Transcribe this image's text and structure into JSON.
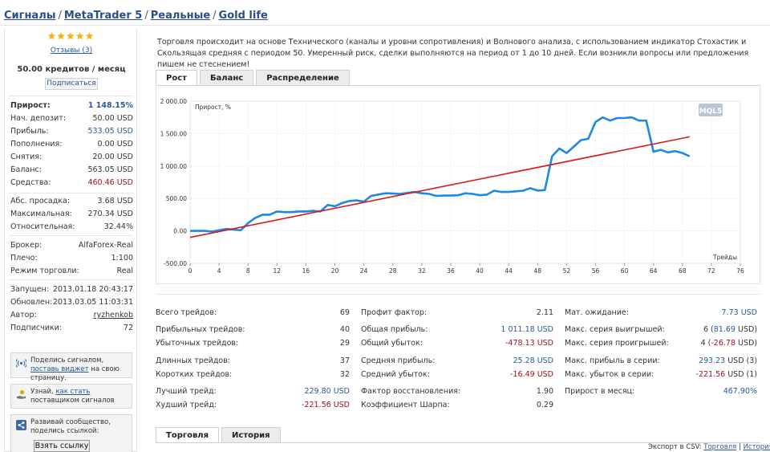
{
  "breadcrumbs": [
    "Сигналы",
    "MetaTrader 5",
    "Реальные",
    "Gold life"
  ],
  "sidebar": {
    "reviews": "Отзывы (3)",
    "price": "50.00 кредитов / месяц",
    "subscribe": "Подписаться",
    "rows1": [
      {
        "k": "Прирост:",
        "v": "1 148.15%",
        "cls": "bold",
        "vc": "blue"
      },
      {
        "k": "Нач. депозит:",
        "v": "50.00 USD"
      },
      {
        "k": "Прибыль:",
        "v": "533.05 USD",
        "vc": "blue"
      },
      {
        "k": "Пополнения:",
        "v": "0.00 USD"
      },
      {
        "k": "Снятия:",
        "v": "20.00 USD"
      },
      {
        "k": "Баланс:",
        "v": "563.05 USD"
      },
      {
        "k": "Средства:",
        "v": "460.46 USD",
        "vc": "red"
      }
    ],
    "rows2": [
      {
        "k": "Абс. просадка:",
        "v": "3.68 USD"
      },
      {
        "k": "Максимальная:",
        "v": "270.34 USD"
      },
      {
        "k": "Относительная:",
        "v": "32.44%"
      }
    ],
    "rows3": [
      {
        "k": "Брокер:",
        "v": "AlfaForex-Real"
      },
      {
        "k": "Плечо:",
        "v": "1:100"
      },
      {
        "k": "Режим торговли:",
        "v": "Real"
      }
    ],
    "rows4": [
      {
        "k": "Запущен:",
        "v": "2013.01.18 20:43:17"
      },
      {
        "k": "Обновлен:",
        "v": "2013.03.05 11:03:31"
      },
      {
        "k": "Автор:",
        "v": "ryzhenkob",
        "vc": "link"
      },
      {
        "k": "Подписчики:",
        "v": "72"
      }
    ],
    "promo1": {
      "pre": "Поделись сигналом, ",
      "link": "поставь виджет",
      "post": " на свою страницу."
    },
    "promo2": {
      "pre": "Узнай, ",
      "link": "как стать",
      "post": " поставщиком сигналов"
    },
    "promo3": {
      "text": "Развивай сообщество, поделись ссылкой:",
      "button": "Взять ссылку"
    }
  },
  "description": "Торговля происходит на основе Технического (каналы и уровни сопротивления) и Волнового анализа, с использованием индикатор Стохастик и Скользящая средняя с периодом 50. Умеренный риск, сделки выполняются на период от 1 до 10 дней. Если возникли вопросы или предложения пишем не стеснением!",
  "chart_tabs": [
    "Рост",
    "Баланс",
    "Распределение"
  ],
  "chart_data": {
    "type": "line",
    "ylabel": "Прирост, %",
    "xlabel": "Трейды",
    "xlim": [
      0,
      76
    ],
    "ylim": [
      -500,
      2000
    ],
    "xticks": [
      "0",
      "4",
      "8",
      "12",
      "16",
      "20",
      "24",
      "28",
      "32",
      "36",
      "40",
      "44",
      "48",
      "52",
      "56",
      "60",
      "64",
      "68",
      "72",
      "76"
    ],
    "yticks": [
      "2 000.00",
      "1 500.00",
      "1 000.00",
      "500.00",
      "0.00",
      "-500.00"
    ],
    "grid": true,
    "watermark": "MQL5",
    "series": [
      {
        "color": "#1e88e5",
        "x": [
          0,
          1,
          2,
          3,
          4,
          5,
          6,
          7,
          8,
          9,
          10,
          11,
          12,
          13,
          14,
          15,
          16,
          17,
          18,
          19,
          20,
          21,
          22,
          23,
          24,
          25,
          26,
          27,
          28,
          29,
          30,
          31,
          32,
          33,
          34,
          35,
          36,
          37,
          38,
          39,
          40,
          41,
          42,
          43,
          44,
          45,
          46,
          47,
          48,
          49,
          50,
          51,
          52,
          53,
          54,
          55,
          56,
          57,
          58,
          59,
          60,
          61,
          62,
          63,
          64,
          65,
          66,
          67,
          68,
          69
        ],
        "y": [
          0,
          0,
          0,
          -10,
          10,
          30,
          20,
          10,
          120,
          200,
          250,
          250,
          300,
          290,
          290,
          300,
          300,
          310,
          300,
          400,
          380,
          430,
          460,
          470,
          450,
          540,
          560,
          580,
          575,
          570,
          585,
          600,
          580,
          570,
          540,
          545,
          545,
          550,
          580,
          570,
          550,
          560,
          620,
          600,
          600,
          610,
          620,
          660,
          620,
          630,
          1150,
          1270,
          1200,
          1300,
          1400,
          1420,
          1680,
          1750,
          1700,
          1740,
          1740,
          1750,
          1700,
          1700,
          1220,
          1250,
          1210,
          1230,
          1200,
          1150
        ]
      },
      {
        "color": "#d61a1a",
        "x": [
          0,
          69
        ],
        "y": [
          -100,
          1450
        ]
      }
    ]
  },
  "stats": {
    "col1": [
      {
        "k": "Всего трейдов:",
        "v": "69"
      },
      {
        "k": "Прибыльных трейдов:",
        "v": "40"
      },
      {
        "k": "Убыточных трейдов:",
        "v": "29"
      },
      {
        "k": "Длинных трейдов:",
        "v": "37"
      },
      {
        "k": "Коротких трейдов:",
        "v": "32"
      },
      {
        "k": "Лучший трейд:",
        "v": "229.80 USD",
        "vc": "blue"
      },
      {
        "k": "Худший трейд:",
        "v": "-221.56 USD",
        "vc": "red"
      }
    ],
    "col2": [
      {
        "k": "Профит фактор:",
        "v": "2.11"
      },
      {
        "k": "Общая прибыль:",
        "v": "1 011.18 USD",
        "vc": "blue"
      },
      {
        "k": "Общий убыток:",
        "v": "-478.13 USD",
        "vc": "red"
      },
      {
        "k": "Средняя прибыль:",
        "v": "25.28 USD",
        "vc": "blue"
      },
      {
        "k": "Средний убыток:",
        "v": "-16.49 USD",
        "vc": "red"
      },
      {
        "k": "Фактор восстановления:",
        "v": "1.90"
      },
      {
        "k": "Коэффициент Шарпа:",
        "v": "0.29"
      }
    ],
    "col3": [
      {
        "k": "Мат. ожидание:",
        "v": "7.73 USD",
        "vc": "blue"
      },
      {
        "k": "Макс. серия выигрышей:",
        "pre": "6 (",
        "v": "81.69",
        "post": " USD)",
        "vc": "blue"
      },
      {
        "k": "Макс. серия проигрышей:",
        "pre": "4 (",
        "v": "-26.78",
        "post": " USD)",
        "vc": "red"
      },
      {
        "k": "Макс. прибыль в серии:",
        "v": "293.23",
        "post": " USD (3)",
        "vc": "blue"
      },
      {
        "k": "Макс. убыток в серии:",
        "v": "-221.56",
        "post": " USD (1)",
        "vc": "red"
      },
      {
        "k": "Прирост в месяц:",
        "v": "467.90%",
        "vc": "blue"
      }
    ]
  },
  "bottom_tabs": [
    "Торговля",
    "История"
  ],
  "export": {
    "label": "Экспорт в CSV:",
    "link1": "Торговля",
    "sep": " | ",
    "link2": "История"
  }
}
